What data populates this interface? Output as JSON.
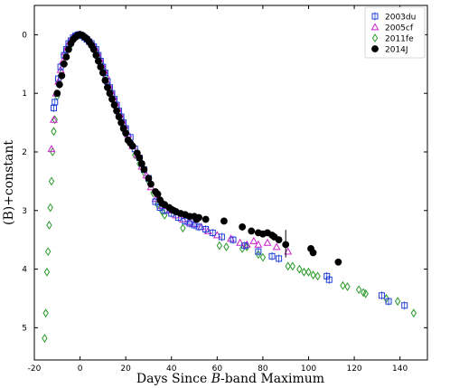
{
  "chart_data": {
    "type": "scatter",
    "title": "",
    "xlabel": "Days Since B-band Maximum",
    "xlabel_parts": [
      "Days Since ",
      "B",
      "-band Maximum"
    ],
    "ylabel": "(B)+constant",
    "xlim": [
      -20,
      152
    ],
    "ylim": [
      5.55,
      -0.5
    ],
    "y_inverted": true,
    "x_ticks": [
      -20,
      0,
      20,
      40,
      60,
      80,
      100,
      120,
      140
    ],
    "y_ticks": [
      0,
      1,
      2,
      3,
      4,
      5
    ],
    "grid": false,
    "legend_position": "top-right",
    "series": [
      {
        "name": "2003du",
        "marker": "square-errorbar",
        "color": "#1f3fd6",
        "points": [
          [
            -11.5,
            1.25
          ],
          [
            -11.0,
            1.15
          ],
          [
            -9.5,
            0.75
          ],
          [
            -8.5,
            0.55
          ],
          [
            -7.0,
            0.35
          ],
          [
            -6.0,
            0.25
          ],
          [
            -5.0,
            0.15
          ],
          [
            -4.0,
            0.1
          ],
          [
            -3.0,
            0.05
          ],
          [
            -2.0,
            0.02
          ],
          [
            -1.0,
            0.0
          ],
          [
            0.0,
            0.0
          ],
          [
            1.0,
            0.02
          ],
          [
            2.0,
            0.05
          ],
          [
            3.0,
            0.08
          ],
          [
            4.0,
            0.12
          ],
          [
            5.0,
            0.15
          ],
          [
            6.0,
            0.2
          ],
          [
            7.0,
            0.25
          ],
          [
            8.0,
            0.35
          ],
          [
            9.0,
            0.45
          ],
          [
            10.0,
            0.55
          ],
          [
            11.0,
            0.65
          ],
          [
            12.0,
            0.8
          ],
          [
            13.0,
            0.9
          ],
          [
            14.0,
            1.0
          ],
          [
            15.0,
            1.1
          ],
          [
            16.0,
            1.2
          ],
          [
            17.0,
            1.3
          ],
          [
            18.0,
            1.4
          ],
          [
            19.0,
            1.5
          ],
          [
            20.0,
            1.6
          ],
          [
            22.0,
            1.75
          ],
          [
            24.0,
            1.95
          ],
          [
            26.0,
            2.1
          ],
          [
            28.0,
            2.3
          ],
          [
            30.0,
            2.45
          ],
          [
            33.0,
            2.85
          ],
          [
            35.0,
            2.95
          ],
          [
            37.0,
            3.0
          ],
          [
            40.0,
            3.05
          ],
          [
            43.0,
            3.12
          ],
          [
            46.0,
            3.18
          ],
          [
            48.0,
            3.22
          ],
          [
            50.0,
            3.25
          ],
          [
            52.0,
            3.28
          ],
          [
            55.0,
            3.32
          ],
          [
            58.0,
            3.38
          ],
          [
            62.0,
            3.45
          ],
          [
            67.0,
            3.5
          ],
          [
            72.0,
            3.6
          ],
          [
            78.0,
            3.7
          ],
          [
            84.0,
            3.78
          ],
          [
            87.0,
            3.82
          ],
          [
            108.0,
            4.12
          ],
          [
            109.0,
            4.18
          ],
          [
            132.0,
            4.45
          ],
          [
            135.0,
            4.55
          ],
          [
            142.0,
            4.62
          ]
        ]
      },
      {
        "name": "2005cf",
        "marker": "triangle",
        "color": "#cc22cc",
        "points": [
          [
            -12.5,
            1.95
          ],
          [
            -11.5,
            1.45
          ],
          [
            -10.5,
            1.0
          ],
          [
            -9.5,
            0.8
          ],
          [
            -8.5,
            0.6
          ],
          [
            -7.5,
            0.45
          ],
          [
            -6.5,
            0.3
          ],
          [
            -5.5,
            0.2
          ],
          [
            -4.5,
            0.12
          ],
          [
            -3.5,
            0.07
          ],
          [
            -2.5,
            0.03
          ],
          [
            -1.5,
            0.01
          ],
          [
            -0.5,
            0.0
          ],
          [
            0.5,
            0.0
          ],
          [
            1.5,
            0.02
          ],
          [
            2.5,
            0.05
          ],
          [
            3.5,
            0.08
          ],
          [
            4.5,
            0.12
          ],
          [
            5.5,
            0.17
          ],
          [
            6.5,
            0.22
          ],
          [
            7.5,
            0.3
          ],
          [
            8.5,
            0.4
          ],
          [
            9.5,
            0.5
          ],
          [
            10.5,
            0.6
          ],
          [
            11.5,
            0.7
          ],
          [
            12.5,
            0.85
          ],
          [
            13.5,
            0.95
          ],
          [
            14.5,
            1.05
          ],
          [
            15.5,
            1.15
          ],
          [
            16.5,
            1.25
          ],
          [
            17.5,
            1.35
          ],
          [
            18.5,
            1.45
          ],
          [
            19.5,
            1.55
          ],
          [
            21.0,
            1.7
          ],
          [
            23.0,
            1.9
          ],
          [
            25.0,
            2.05
          ],
          [
            27.0,
            2.25
          ],
          [
            29.0,
            2.4
          ],
          [
            31.0,
            2.6
          ],
          [
            33.0,
            2.8
          ],
          [
            36.0,
            2.92
          ],
          [
            39.0,
            3.0
          ],
          [
            42.0,
            3.08
          ],
          [
            45.0,
            3.15
          ],
          [
            48.0,
            3.2
          ],
          [
            50.0,
            3.23
          ],
          [
            53.0,
            3.28
          ],
          [
            56.0,
            3.35
          ],
          [
            60.0,
            3.42
          ],
          [
            66.0,
            3.48
          ],
          [
            70.0,
            3.55
          ],
          [
            73.0,
            3.58
          ],
          [
            76.0,
            3.52
          ],
          [
            78.0,
            3.58
          ],
          [
            82.0,
            3.55
          ],
          [
            86.0,
            3.62
          ],
          [
            91.0,
            3.7
          ]
        ]
      },
      {
        "name": "2011fe",
        "marker": "diamond",
        "color": "#2a9a2a",
        "points": [
          [
            -15.5,
            5.18
          ],
          [
            -15.0,
            4.75
          ],
          [
            -14.5,
            4.05
          ],
          [
            -14.0,
            3.7
          ],
          [
            -13.5,
            3.25
          ],
          [
            -13.0,
            2.95
          ],
          [
            -12.5,
            2.5
          ],
          [
            -12.0,
            2.0
          ],
          [
            -11.5,
            1.65
          ],
          [
            -11.0,
            1.45
          ],
          [
            -10.0,
            1.05
          ],
          [
            -9.0,
            0.85
          ],
          [
            -8.0,
            0.65
          ],
          [
            -7.0,
            0.48
          ],
          [
            -6.0,
            0.35
          ],
          [
            -5.0,
            0.25
          ],
          [
            -4.0,
            0.17
          ],
          [
            -3.0,
            0.1
          ],
          [
            -2.0,
            0.05
          ],
          [
            -1.0,
            0.02
          ],
          [
            0.0,
            0.0
          ],
          [
            1.0,
            0.02
          ],
          [
            2.0,
            0.05
          ],
          [
            3.0,
            0.08
          ],
          [
            4.0,
            0.12
          ],
          [
            5.0,
            0.17
          ],
          [
            6.0,
            0.22
          ],
          [
            7.0,
            0.3
          ],
          [
            8.0,
            0.4
          ],
          [
            9.0,
            0.5
          ],
          [
            10.0,
            0.6
          ],
          [
            11.0,
            0.72
          ],
          [
            12.0,
            0.85
          ],
          [
            13.0,
            0.95
          ],
          [
            14.0,
            1.08
          ],
          [
            15.0,
            1.2
          ],
          [
            16.0,
            1.3
          ],
          [
            17.0,
            1.4
          ],
          [
            18.0,
            1.5
          ],
          [
            19.0,
            1.6
          ],
          [
            20.0,
            1.7
          ],
          [
            22.0,
            1.85
          ],
          [
            24.0,
            2.05
          ],
          [
            26.0,
            2.2
          ],
          [
            28.0,
            2.35
          ],
          [
            30.0,
            2.5
          ],
          [
            32.0,
            2.7
          ],
          [
            34.0,
            2.9
          ],
          [
            36.0,
            3.02
          ],
          [
            37.0,
            3.08
          ],
          [
            45.0,
            3.3
          ],
          [
            61.0,
            3.6
          ],
          [
            64.0,
            3.62
          ],
          [
            71.0,
            3.65
          ],
          [
            73.0,
            3.62
          ],
          [
            78.0,
            3.75
          ],
          [
            80.0,
            3.8
          ],
          [
            91.0,
            3.95
          ],
          [
            93.0,
            3.95
          ],
          [
            96.0,
            4.0
          ],
          [
            98.0,
            4.05
          ],
          [
            100.0,
            4.05
          ],
          [
            102.0,
            4.1
          ],
          [
            104.0,
            4.12
          ],
          [
            115.0,
            4.28
          ],
          [
            117.0,
            4.3
          ],
          [
            122.0,
            4.35
          ],
          [
            124.0,
            4.4
          ],
          [
            125.0,
            4.42
          ],
          [
            134.0,
            4.5
          ],
          [
            139.0,
            4.55
          ],
          [
            146.0,
            4.75
          ]
        ]
      },
      {
        "name": "2014J",
        "marker": "circle",
        "color": "#000000",
        "points": [
          [
            -10.0,
            1.0
          ],
          [
            -9.0,
            0.85
          ],
          [
            -8.0,
            0.7
          ],
          [
            -7.0,
            0.5
          ],
          [
            -6.0,
            0.38
          ],
          [
            -5.0,
            0.25
          ],
          [
            -4.0,
            0.15
          ],
          [
            -3.0,
            0.08
          ],
          [
            -2.0,
            0.04
          ],
          [
            -1.0,
            0.01
          ],
          [
            0.0,
            0.0
          ],
          [
            1.0,
            0.01
          ],
          [
            2.0,
            0.04
          ],
          [
            3.0,
            0.07
          ],
          [
            4.0,
            0.12
          ],
          [
            5.0,
            0.18
          ],
          [
            6.0,
            0.25
          ],
          [
            7.0,
            0.35
          ],
          [
            8.0,
            0.45
          ],
          [
            9.0,
            0.55
          ],
          [
            10.0,
            0.65
          ],
          [
            11.0,
            0.78
          ],
          [
            12.0,
            0.9
          ],
          [
            13.0,
            1.0
          ],
          [
            14.0,
            1.1
          ],
          [
            15.0,
            1.2
          ],
          [
            16.0,
            1.3
          ],
          [
            17.0,
            1.4
          ],
          [
            18.0,
            1.5
          ],
          [
            19.0,
            1.6
          ],
          [
            20.0,
            1.68
          ],
          [
            21.0,
            1.8
          ],
          [
            22.0,
            1.85
          ],
          [
            23.0,
            1.9
          ],
          [
            25.0,
            2.02
          ],
          [
            26.0,
            2.1
          ],
          [
            27.0,
            2.2
          ],
          [
            28.0,
            2.3
          ],
          [
            30.0,
            2.45
          ],
          [
            31.0,
            2.55
          ],
          [
            33.0,
            2.68
          ],
          [
            34.0,
            2.72
          ],
          [
            35.0,
            2.82
          ],
          [
            36.0,
            2.88
          ],
          [
            37.0,
            2.9
          ],
          [
            39.0,
            2.95
          ],
          [
            40.0,
            2.98
          ],
          [
            41.0,
            3.0
          ],
          [
            42.0,
            3.02
          ],
          [
            44.0,
            3.05
          ],
          [
            46.0,
            3.07
          ],
          [
            48.0,
            3.1
          ],
          [
            50.0,
            3.1
          ],
          [
            51.0,
            3.15
          ],
          [
            52.0,
            3.12
          ],
          [
            55.0,
            3.15
          ],
          [
            63.0,
            3.18
          ],
          [
            71.0,
            3.28
          ],
          [
            75.0,
            3.35
          ],
          [
            78.0,
            3.38
          ],
          [
            80.0,
            3.4
          ],
          [
            82.0,
            3.38
          ],
          [
            84.0,
            3.42
          ],
          [
            85.0,
            3.45
          ],
          [
            87.0,
            3.5
          ],
          [
            90.0,
            3.58
          ],
          [
            101.0,
            3.65
          ],
          [
            102.0,
            3.72
          ],
          [
            113.0,
            3.88
          ]
        ]
      }
    ]
  }
}
